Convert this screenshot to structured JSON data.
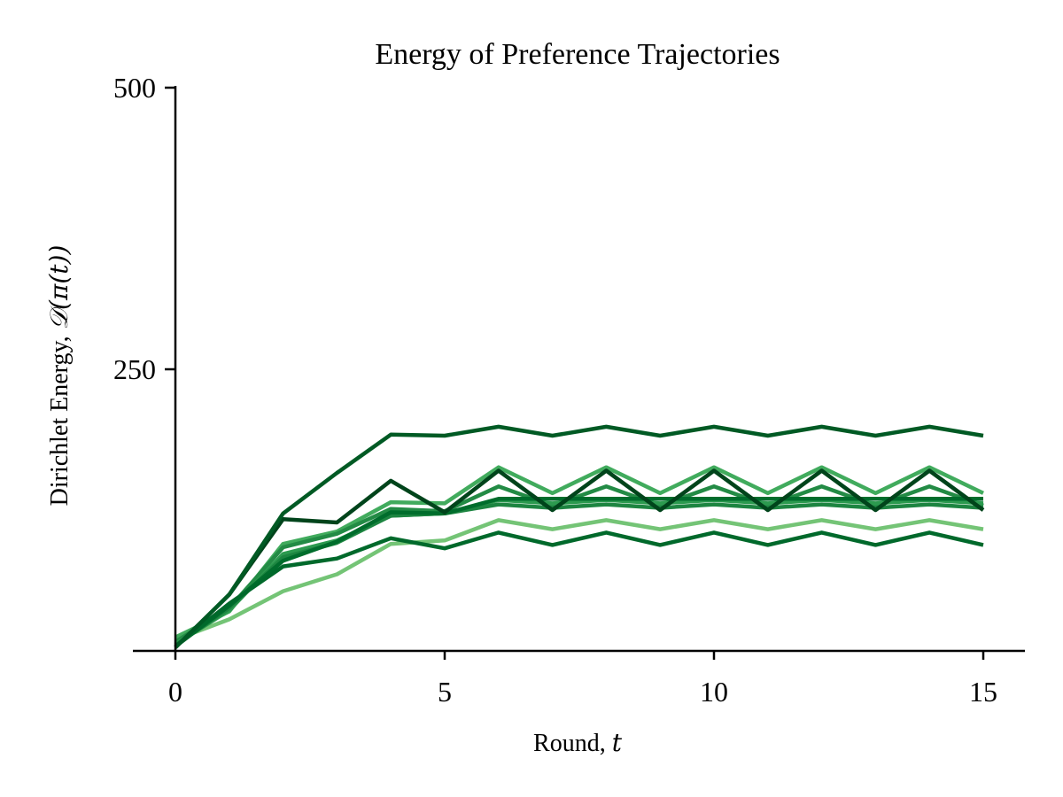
{
  "chart_data": {
    "type": "line",
    "title": "Energy of Preference Trajectories",
    "xlabel_text": "Round, ",
    "xlabel_math": "t",
    "ylabel_text": "Dirichlet Energy, ",
    "ylabel_math": "𝒟(π(t))",
    "xlim": [
      -0.75,
      15.75
    ],
    "ylim": [
      0,
      500
    ],
    "xticks": [
      0,
      5,
      10,
      15
    ],
    "xtick_labels": [
      "0",
      "5",
      "10",
      "15"
    ],
    "yticks": [
      250,
      500
    ],
    "ytick_labels": [
      "250",
      "500"
    ],
    "x": [
      0,
      1,
      2,
      3,
      4,
      5,
      6,
      7,
      8,
      9,
      10,
      11,
      12,
      13,
      14,
      15
    ],
    "series": [
      {
        "color": "#74c476",
        "values": [
          10,
          28,
          53,
          68,
          95,
          98,
          116,
          108,
          116,
          108,
          116,
          108,
          116,
          108,
          116,
          108
        ]
      },
      {
        "color": "#41ab5d",
        "values": [
          12,
          35,
          95,
          106,
          132,
          131,
          163,
          140,
          163,
          140,
          163,
          140,
          163,
          140,
          163,
          140
        ]
      },
      {
        "color": "#238b45",
        "values": [
          8,
          38,
          92,
          104,
          126,
          124,
          146,
          129,
          146,
          129,
          146,
          129,
          146,
          129,
          146,
          129
        ]
      },
      {
        "color": "#2c9a4f",
        "values": [
          6,
          36,
          86,
          98,
          120,
          122,
          134,
          131,
          134,
          131,
          134,
          131,
          134,
          131,
          134,
          131
        ]
      },
      {
        "color": "#1d8541",
        "values": [
          5,
          38,
          83,
          96,
          120,
          122,
          130,
          127,
          130,
          127,
          130,
          127,
          130,
          127,
          130,
          127
        ]
      },
      {
        "color": "#006d2c",
        "values": [
          4,
          40,
          80,
          97,
          123,
          122,
          135,
          135,
          135,
          135,
          135,
          135,
          135,
          135,
          135,
          135
        ]
      },
      {
        "color": "#00692b",
        "values": [
          4,
          42,
          75,
          82,
          100,
          91,
          105,
          94,
          105,
          94,
          105,
          94,
          105,
          94,
          105,
          94
        ]
      },
      {
        "color": "#00441b",
        "values": [
          3,
          50,
          117,
          114,
          151,
          123,
          160,
          125,
          160,
          125,
          160,
          125,
          160,
          125,
          160,
          125
        ]
      },
      {
        "color": "#005a24",
        "values": [
          3,
          50,
          122,
          158,
          192,
          191,
          199,
          191,
          199,
          191,
          199,
          191,
          199,
          191,
          199,
          191
        ]
      }
    ]
  }
}
